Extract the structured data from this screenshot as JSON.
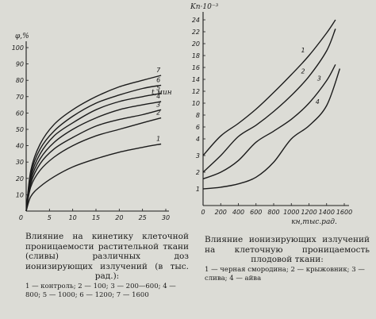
{
  "chart_data": [
    {
      "type": "line",
      "ylabel": "φ,%",
      "xlabel": "t,мин",
      "xlim": [
        0,
        30
      ],
      "ylim": [
        0,
        100
      ],
      "xticks": [
        "5",
        "10",
        "15",
        "20",
        "25",
        "30"
      ],
      "yticks": [
        "10",
        "20",
        "30",
        "40",
        "50",
        "60",
        "70",
        "80",
        "90",
        "100"
      ],
      "origin_label": "0",
      "caption": "Влияние на кинетику клеточной проницаемости растительной ткани (сливы) различных доз ионизирующих излучений (в тыс. рад.):",
      "legend_text": "1 — контроль; 2 — 100; 3 — 200—600; 4 — 800; 5 — 1000; 6 — 1200; 7 — 1600",
      "series": [
        {
          "name": "1",
          "x": [
            0,
            1,
            3,
            6,
            10,
            15,
            20,
            25,
            29
          ],
          "y": [
            0,
            9,
            15,
            21,
            27,
            32,
            36,
            39,
            41
          ]
        },
        {
          "name": "2",
          "x": [
            0,
            1,
            3,
            6,
            10,
            15,
            20,
            25,
            29
          ],
          "y": [
            0,
            15,
            25,
            33,
            40,
            46,
            50,
            54,
            57
          ]
        },
        {
          "name": "3",
          "x": [
            0,
            1,
            3,
            6,
            10,
            15,
            20,
            25,
            29
          ],
          "y": [
            0,
            17,
            29,
            38,
            45,
            52,
            56,
            59,
            62
          ]
        },
        {
          "name": "4",
          "x": [
            0,
            1,
            3,
            6,
            10,
            15,
            20,
            25,
            29
          ],
          "y": [
            0,
            19,
            32,
            42,
            50,
            57,
            62,
            65,
            67
          ]
        },
        {
          "name": "5",
          "x": [
            0,
            1,
            3,
            6,
            10,
            15,
            20,
            25,
            29
          ],
          "y": [
            0,
            21,
            35,
            46,
            54,
            62,
            67,
            70,
            72
          ]
        },
        {
          "name": "6",
          "x": [
            0,
            1,
            3,
            6,
            10,
            15,
            20,
            25,
            29
          ],
          "y": [
            0,
            23,
            38,
            49,
            58,
            66,
            71,
            75,
            77
          ]
        },
        {
          "name": "7",
          "x": [
            0,
            1,
            3,
            6,
            10,
            15,
            20,
            25,
            29
          ],
          "y": [
            0,
            25,
            41,
            53,
            62,
            70,
            76,
            80,
            83
          ]
        }
      ]
    },
    {
      "type": "line",
      "ylabel": "Kп·10⁻³",
      "xlabel": "кн,тыс.рад.",
      "xlim": [
        0,
        1600
      ],
      "ylim": [
        0,
        25
      ],
      "xticks": [
        "0",
        "200",
        "400",
        "600",
        "800",
        "1000",
        "1200",
        "1400",
        "1600"
      ],
      "yticks": [
        "1",
        "2",
        "3",
        "4",
        "6",
        "8",
        "10",
        "12",
        "14",
        "16",
        "18",
        "20",
        "22",
        "24"
      ],
      "caption": "Влияние ионизирующих излучений на клеточную проницаемость плодовой ткани:",
      "legend_text": "1 — черная смородина; 2 — крыжовник; 3 — слива; 4 — айва",
      "series": [
        {
          "name": "1",
          "x": [
            0,
            200,
            400,
            600,
            800,
            1000,
            1200,
            1400,
            1500
          ],
          "y": [
            3,
            4.5,
            6.6,
            9,
            11.8,
            14.8,
            18,
            21.8,
            24
          ]
        },
        {
          "name": "2",
          "x": [
            0,
            200,
            400,
            600,
            800,
            1000,
            1200,
            1400,
            1500
          ],
          "y": [
            2,
            3,
            4.4,
            6.3,
            8.6,
            11.3,
            14.5,
            18.8,
            22.5
          ]
        },
        {
          "name": "3",
          "x": [
            0,
            200,
            400,
            600,
            800,
            1000,
            1200,
            1400,
            1500
          ],
          "y": [
            1.6,
            2,
            2.7,
            3.8,
            5.3,
            7.3,
            10,
            13.8,
            16.5
          ]
        },
        {
          "name": "4",
          "x": [
            0,
            200,
            400,
            600,
            800,
            1000,
            1200,
            1400,
            1550
          ],
          "y": [
            1,
            1.1,
            1.3,
            1.7,
            2.6,
            4,
            6.2,
            9.6,
            15.8
          ]
        }
      ]
    }
  ]
}
